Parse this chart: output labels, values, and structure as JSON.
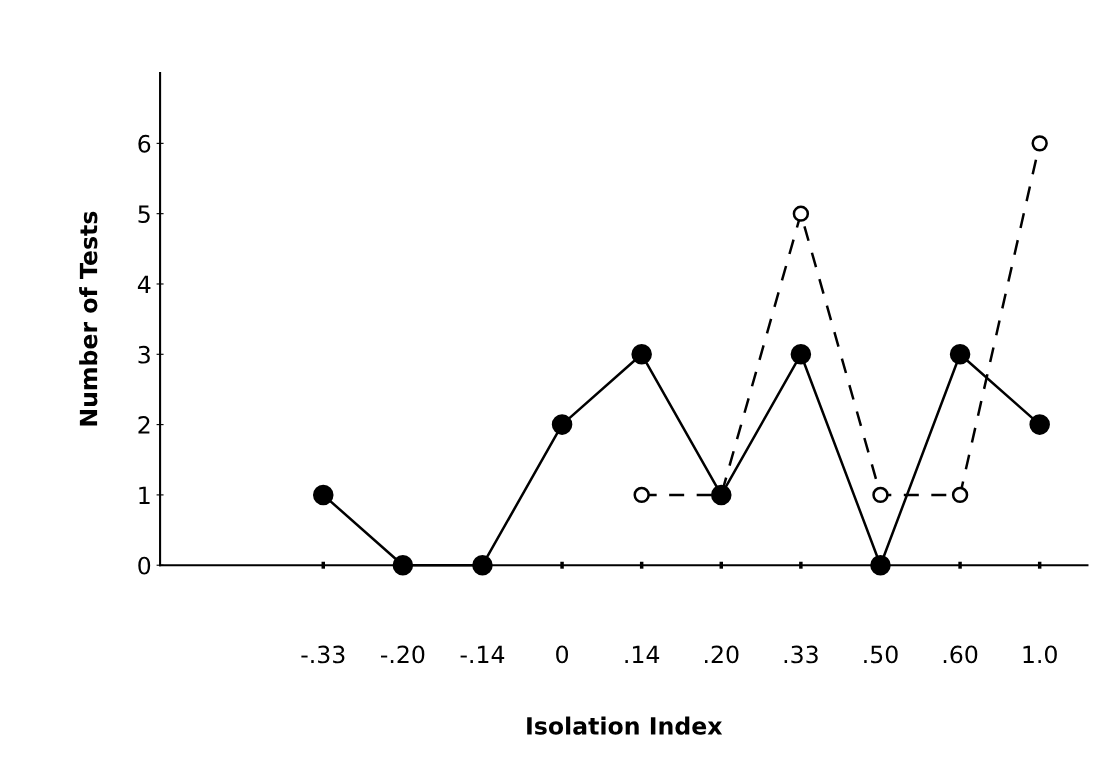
{
  "chart_data": {
    "type": "line",
    "xlabel": "Isolation Index",
    "ylabel": "Number of Tests",
    "categories": [
      "-.33",
      "-.20",
      "-.14",
      "0",
      ".14",
      ".20",
      ".33",
      ".50",
      ".60",
      "1.0"
    ],
    "series": [
      {
        "color": "#000000",
        "line_style": "solid",
        "values": [
          1,
          0,
          0,
          2,
          3,
          1,
          3,
          0,
          3,
          2
        ]
      },
      {
        "color": "#000000",
        "line_style": "dashed",
        "values": [
          null,
          null,
          null,
          null,
          1,
          1,
          5,
          1,
          1,
          6
        ]
      }
    ],
    "ylim": [
      0,
      7
    ],
    "yticks": [
      0,
      1,
      2,
      3,
      4,
      5,
      6
    ],
    "marker": "circle",
    "grid": false,
    "legend": false
  }
}
